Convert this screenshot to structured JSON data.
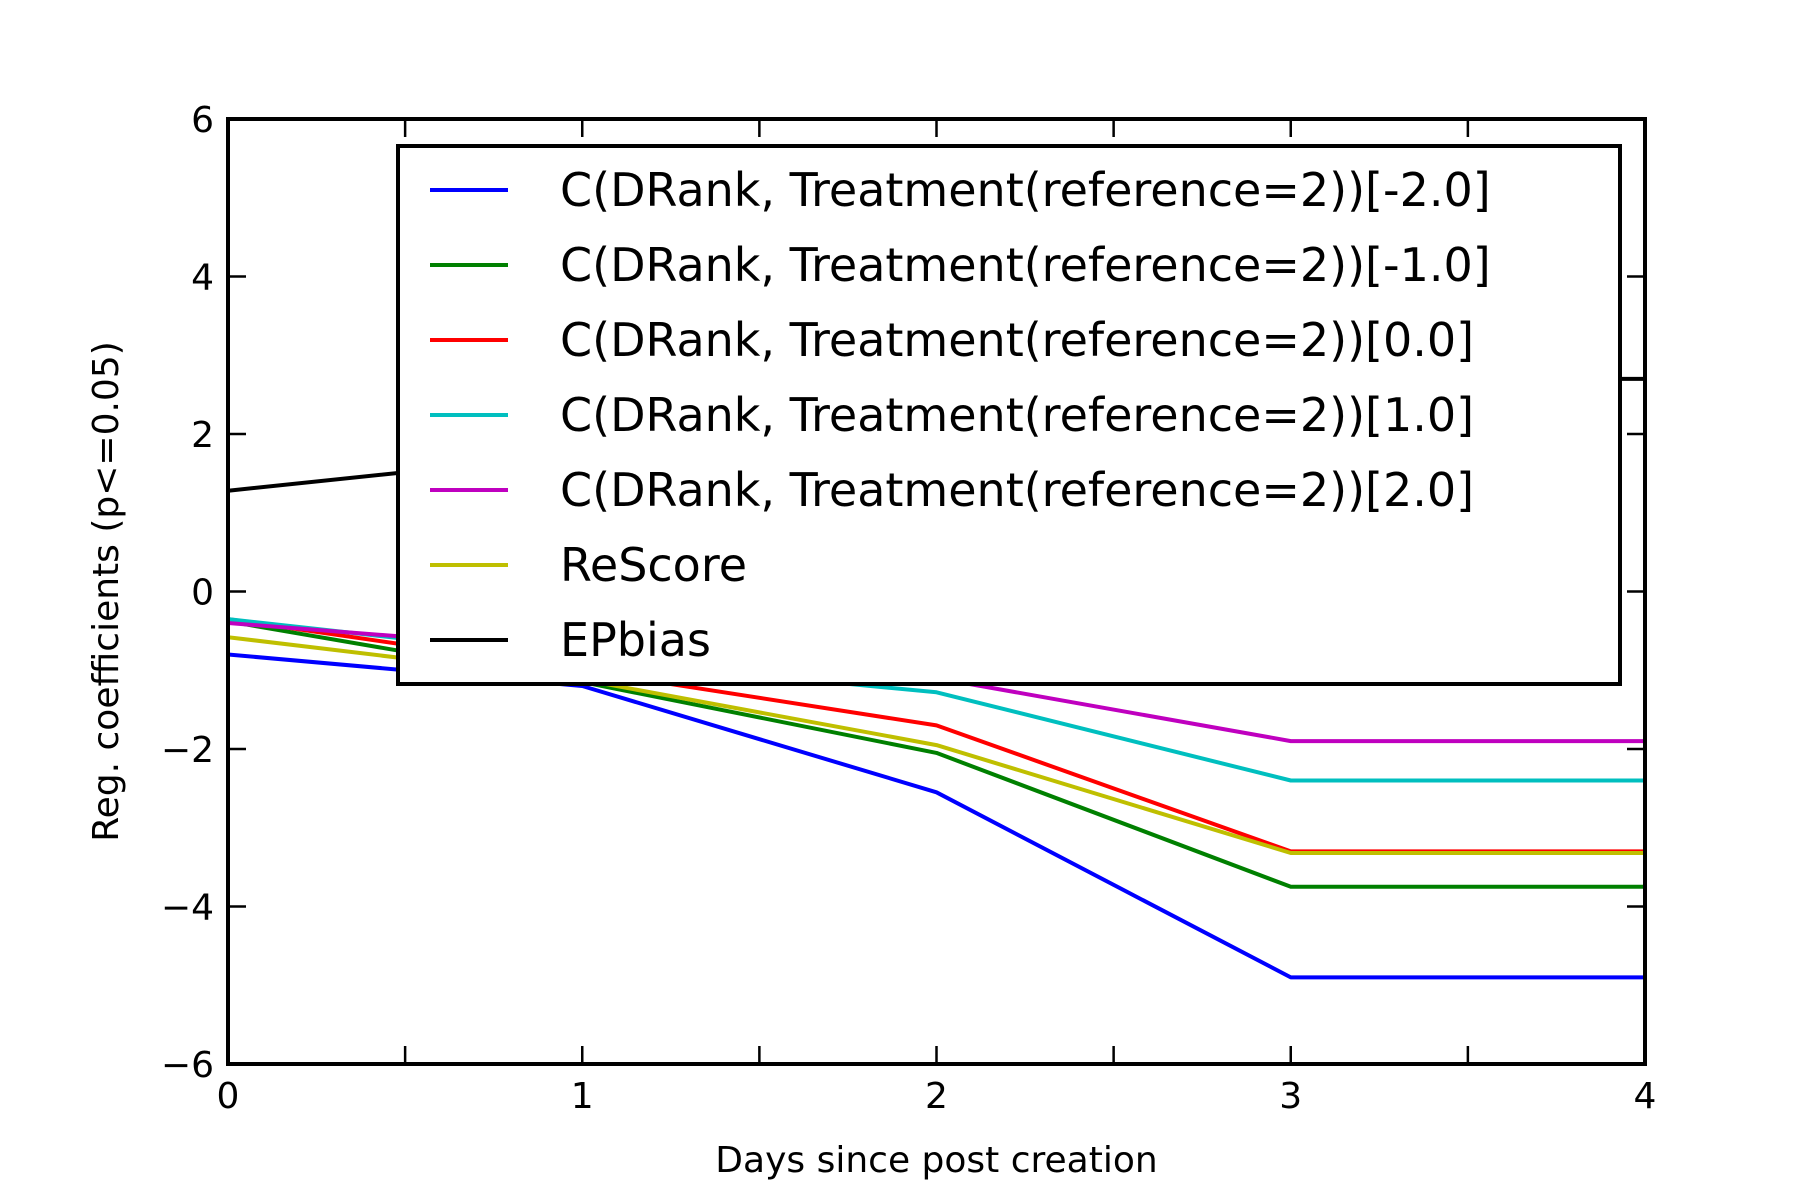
{
  "chart_data": {
    "type": "line",
    "title": "",
    "xlabel": "Days since post creation",
    "ylabel": "Reg. coefficients (p<=0.05)",
    "xlim": [
      0,
      4
    ],
    "ylim": [
      -6,
      6
    ],
    "xticks": [
      0,
      1,
      2,
      3,
      4
    ],
    "yticks": [
      -6,
      -4,
      -2,
      0,
      2,
      4,
      6
    ],
    "grid": false,
    "legend_position": "upper right",
    "x": [
      0,
      1,
      2,
      3,
      4
    ],
    "series": [
      {
        "name": "C(DRank, Treatment(reference=2))[-2.0]",
        "color": "#0000ff",
        "values": [
          -0.8,
          -1.2,
          -2.55,
          -4.9,
          -4.9
        ]
      },
      {
        "name": "C(DRank, Treatment(reference=2))[-1.0]",
        "color": "#008000",
        "values": [
          -0.38,
          -1.15,
          -2.05,
          -3.75,
          -3.75
        ]
      },
      {
        "name": "C(DRank, Treatment(reference=2))[0.0]",
        "color": "#ff0000",
        "values": [
          -0.35,
          -1.0,
          -1.7,
          -3.3,
          -3.3
        ]
      },
      {
        "name": "C(DRank, Treatment(reference=2))[1.0]",
        "color": "#00bfbf",
        "values": [
          -0.35,
          -0.85,
          -1.28,
          -2.4,
          -2.4
        ]
      },
      {
        "name": "C(DRank, Treatment(reference=2))[2.0]",
        "color": "#bf00bf",
        "values": [
          -0.4,
          -0.75,
          -1.1,
          -1.9,
          -1.9
        ]
      },
      {
        "name": "ReScore",
        "color": "#bfbf00",
        "values": [
          -0.58,
          -1.12,
          -1.95,
          -3.32,
          -3.32
        ]
      },
      {
        "name": "EPbias",
        "color": "#000000",
        "values": [
          1.28,
          1.75,
          2.2,
          2.7,
          2.7
        ]
      }
    ]
  }
}
